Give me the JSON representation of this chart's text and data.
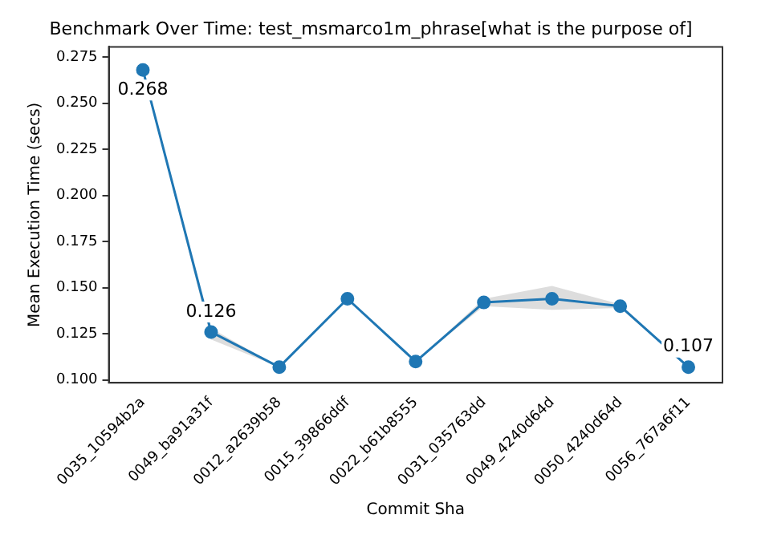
{
  "chart_data": {
    "type": "line",
    "title": "Benchmark Over Time: test_msmarco1m_phrase[what is the purpose of]",
    "xlabel": "Commit Sha",
    "ylabel": "Mean Execution Time (secs)",
    "categories": [
      "0035_10594b2a",
      "0049_ba91a31f",
      "0012_a2639b58",
      "0015_39866ddf",
      "0022_b61b8555",
      "0031_035763dd",
      "0049_4240d64d",
      "0050_4240d64d",
      "0056_767a6f11"
    ],
    "series": [
      {
        "color": "#1f77b4",
        "values": [
          0.268,
          0.126,
          0.107,
          0.144,
          0.11,
          0.142,
          0.144,
          0.14,
          0.107
        ],
        "lower": [
          0.268,
          0.122,
          0.107,
          0.144,
          0.11,
          0.14,
          0.138,
          0.139,
          0.107
        ],
        "upper": [
          0.268,
          0.128,
          0.107,
          0.144,
          0.11,
          0.144,
          0.151,
          0.141,
          0.107
        ],
        "value_labels": [
          "0.268",
          "0.126",
          null,
          null,
          null,
          null,
          null,
          null,
          "0.107"
        ]
      }
    ],
    "marker": "circle",
    "ylim": [
      0.0985,
      0.2805
    ],
    "yticks": [
      {
        "value": 0.1,
        "label": "0.100"
      },
      0.125,
      {
        "value": 0.15,
        "label": "0.150"
      },
      0.175,
      {
        "value": 0.2,
        "label": "0.200"
      },
      0.225,
      {
        "value": 0.25,
        "label": "0.250"
      },
      0.275
    ],
    "grid": false,
    "legend": false
  }
}
